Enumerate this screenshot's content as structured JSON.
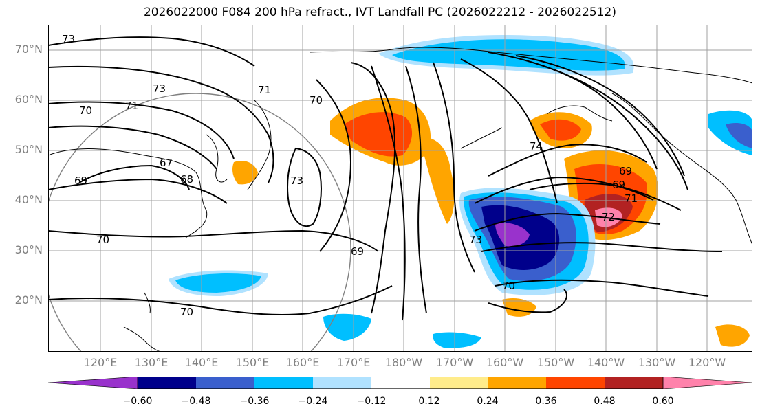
{
  "title": "2026022000 F084 200 hPa refract., IVT Landfall PC (2026022212 - 2026022512)",
  "lat_labels": [
    "70°N",
    "60°N",
    "50°N",
    "40°N",
    "30°N",
    "20°N"
  ],
  "lon_labels": [
    "120°E",
    "130°E",
    "140°E",
    "150°E",
    "160°E",
    "170°E",
    "180°W",
    "170°W",
    "160°W",
    "150°W",
    "140°W",
    "130°W",
    "120°W"
  ],
  "contour_labels": [
    "73",
    "73",
    "71",
    "71",
    "70",
    "70",
    "70",
    "70",
    "69",
    "69",
    "67",
    "68",
    "73",
    "69",
    "73",
    "70",
    "74",
    "69",
    "71",
    "72"
  ],
  "colorbar": {
    "colors": [
      "#9932cc",
      "#00008b",
      "#3a5fcd",
      "#00bfff",
      "#b0e2ff",
      "#ffffff",
      "#ffec8b",
      "#ffa500",
      "#ff4500",
      "#b22222",
      "#ff82ab"
    ],
    "ticks": [
      "−0.60",
      "−0.48",
      "−0.36",
      "−0.24",
      "−0.12",
      "0.12",
      "0.24",
      "0.36",
      "0.48",
      "0.60"
    ]
  },
  "fill_colors": {
    "lightblue": "#b0e2ff",
    "cyan": "#00bfff",
    "blue": "#3a5fcd",
    "navy": "#00008b",
    "purple": "#9932cc",
    "yellow": "#ffec8b",
    "orange": "#ffa500",
    "red": "#ff4500",
    "darkred": "#b22222",
    "pink": "#ff82ab"
  }
}
